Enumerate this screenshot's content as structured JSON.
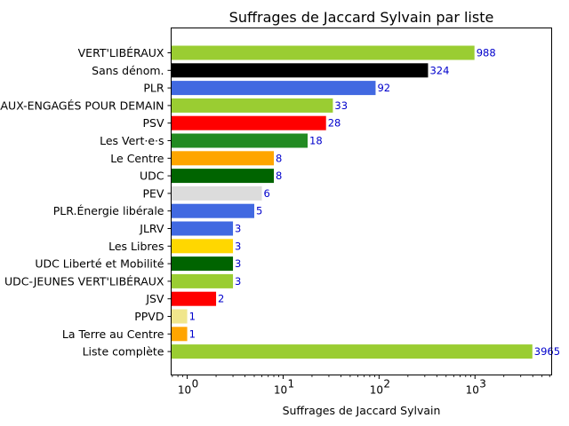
{
  "chart_data": {
    "type": "bar",
    "orientation": "horizontal",
    "title": "Suffrages de Jaccard Sylvain par liste",
    "xlabel": "Suffrages de Jaccard Sylvain",
    "ylabel": "",
    "xscale": "log",
    "xlim": [
      0.68,
      6300
    ],
    "xticks": [
      {
        "value": 1,
        "base": "10",
        "exp": "0"
      },
      {
        "value": 10,
        "base": "10",
        "exp": "1"
      },
      {
        "value": 100,
        "base": "10",
        "exp": "2"
      },
      {
        "value": 1000,
        "base": "10",
        "exp": "3"
      }
    ],
    "grid": false,
    "legend": "none",
    "categories": [
      "VERT'LIBÉRAUX",
      "Sans dénom.",
      "PLR",
      "JEUNES VERT'LIBÉRAUX-ENGAGÉS POUR DEMAIN",
      "PSV",
      "Les Vert·e·s",
      "Le Centre",
      "UDC",
      "PEV",
      "PLR.Énergie libérale",
      "JLRV",
      "Les Libres",
      "UDC Liberté et Mobilité",
      "UDC-JEUNES VERT'LIBÉRAUX",
      "JSV",
      "PPVD",
      "La Terre au Centre",
      "Liste complète"
    ],
    "values": [
      988,
      324,
      92,
      33,
      28,
      18,
      8,
      8,
      6,
      5,
      3,
      3,
      3,
      3,
      2,
      1,
      1,
      3965
    ],
    "value_labels": [
      "988",
      "324",
      "92",
      "33",
      "28",
      "18",
      "8",
      "8",
      "6",
      "5",
      "3",
      "3",
      "3",
      "3",
      "2",
      "1",
      "1",
      "3965"
    ],
    "colors": [
      "#9acd32",
      "#000000",
      "#4169e1",
      "#9acd32",
      "#ff0000",
      "#228b22",
      "#ffa500",
      "#006400",
      "#dcdcdc",
      "#4169e1",
      "#4169e1",
      "#ffd700",
      "#006400",
      "#9acd32",
      "#ff0000",
      "#f0e68c",
      "#ffa500",
      "#9acd32"
    ],
    "value_label_color": "#0000cc"
  }
}
